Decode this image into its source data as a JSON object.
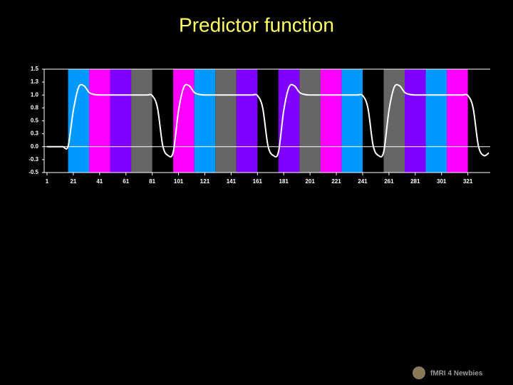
{
  "chart_data": {
    "type": "line",
    "title": "Predictor function",
    "logo": "fMRI 4 Newbies",
    "xlim": [
      1,
      338
    ],
    "ylim": [
      -0.5,
      1.5
    ],
    "xticks": [
      1,
      21,
      41,
      61,
      81,
      101,
      121,
      141,
      161,
      181,
      201,
      221,
      241,
      261,
      281,
      301,
      321
    ],
    "yticks": [
      {
        "value": 1.5,
        "label": "1.5"
      },
      {
        "value": 1.25,
        "label": "1.3"
      },
      {
        "value": 1,
        "label": "1.0"
      },
      {
        "value": 0.75,
        "label": "0.8"
      },
      {
        "value": 0.5,
        "label": "0.5"
      },
      {
        "value": 0.25,
        "label": "0.3"
      },
      {
        "value": 0,
        "label": "0.0"
      },
      {
        "value": -0.25,
        "label": "-0.3"
      },
      {
        "value": -0.5,
        "label": "-0.5"
      }
    ],
    "bands": [
      {
        "start": 17,
        "end": 33,
        "color": "#0099ff"
      },
      {
        "start": 33,
        "end": 49,
        "color": "#ff00ff"
      },
      {
        "start": 49,
        "end": 65,
        "color": "#8000ff"
      },
      {
        "start": 65,
        "end": 81,
        "color": "#666666"
      },
      {
        "start": 97,
        "end": 113,
        "color": "#ff00ff"
      },
      {
        "start": 113,
        "end": 129,
        "color": "#0099ff"
      },
      {
        "start": 129,
        "end": 145,
        "color": "#666666"
      },
      {
        "start": 145,
        "end": 161,
        "color": "#8000ff"
      },
      {
        "start": 177,
        "end": 193,
        "color": "#8000ff"
      },
      {
        "start": 193,
        "end": 209,
        "color": "#666666"
      },
      {
        "start": 209,
        "end": 225,
        "color": "#ff00ff"
      },
      {
        "start": 225,
        "end": 241,
        "color": "#0099ff"
      },
      {
        "start": 257,
        "end": 273,
        "color": "#666666"
      },
      {
        "start": 273,
        "end": 289,
        "color": "#8000ff"
      },
      {
        "start": 289,
        "end": 305,
        "color": "#0099ff"
      },
      {
        "start": 305,
        "end": 321,
        "color": "#ff00ff"
      }
    ],
    "series": [
      {
        "color": "#ffffff",
        "x": [
          1,
          5,
          9,
          13,
          17,
          21,
          25,
          29,
          33,
          37,
          41,
          45,
          49,
          53,
          57,
          61,
          65,
          69,
          73,
          77,
          81,
          85,
          89,
          93,
          97,
          101,
          105,
          109,
          113,
          117,
          121,
          125,
          129,
          133,
          137,
          141,
          145,
          149,
          153,
          157,
          161,
          165,
          169,
          173,
          177,
          181,
          185,
          189,
          193,
          197,
          201,
          205,
          209,
          213,
          217,
          221,
          225,
          229,
          233,
          237,
          241,
          245,
          249,
          253,
          257,
          261,
          265,
          269,
          273,
          277,
          281,
          285,
          289,
          293,
          297,
          301,
          305,
          309,
          313,
          317,
          321,
          325,
          329,
          333,
          337
        ],
        "values": [
          0,
          0,
          0,
          0,
          0.01,
          0.7,
          1.15,
          1.18,
          1.05,
          1.01,
          1,
          1,
          1,
          1,
          1,
          1,
          1,
          1,
          1,
          1,
          0.99,
          0.75,
          0.02,
          -0.17,
          -0.1,
          0.7,
          1.15,
          1.18,
          1.05,
          1.01,
          1,
          1,
          1,
          1,
          1,
          1,
          1,
          1,
          1,
          1,
          0.99,
          0.75,
          0.02,
          -0.17,
          -0.1,
          0.7,
          1.15,
          1.18,
          1.05,
          1.01,
          1,
          1,
          1,
          1,
          1,
          1,
          1,
          1,
          1,
          1,
          0.99,
          0.75,
          0.02,
          -0.17,
          -0.1,
          0.7,
          1.15,
          1.18,
          1.05,
          1.01,
          1,
          1,
          1,
          1,
          1,
          1,
          1,
          1,
          1,
          1,
          0.99,
          0.75,
          0.02,
          -0.17,
          -0.12
        ]
      }
    ]
  }
}
